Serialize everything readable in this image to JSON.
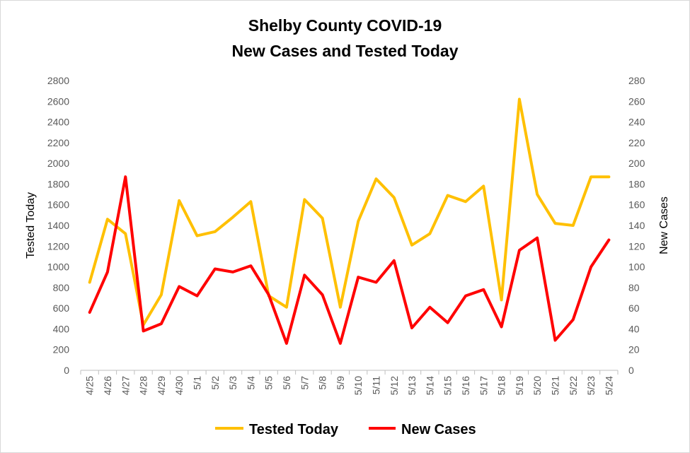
{
  "chart_data": {
    "type": "line",
    "title": "Shelby County COVID-19",
    "subtitle": "New Cases and Tested Today",
    "ylabel_left": "Tested Today",
    "ylabel_right": "New Cases",
    "ylim_left": [
      0,
      2800
    ],
    "ylim_right": [
      0,
      280
    ],
    "yticks_left": [
      0,
      200,
      400,
      600,
      800,
      1000,
      1200,
      1400,
      1600,
      1800,
      2000,
      2200,
      2400,
      2600,
      2800
    ],
    "yticks_right": [
      0,
      20,
      40,
      60,
      80,
      100,
      120,
      140,
      160,
      180,
      200,
      220,
      240,
      260,
      280
    ],
    "grid": false,
    "legend_position": "bottom",
    "categories": [
      "4/25",
      "4/26",
      "4/27",
      "4/28",
      "4/29",
      "4/30",
      "5/1",
      "5/2",
      "5/3",
      "5/4",
      "5/5",
      "5/6",
      "5/7",
      "5/8",
      "5/9",
      "5/10",
      "5/11",
      "5/12",
      "5/13",
      "5/14",
      "5/15",
      "5/16",
      "5/17",
      "5/18",
      "5/19",
      "5/20",
      "5/21",
      "5/22",
      "5/23",
      "5/24"
    ],
    "series": [
      {
        "name": "Tested Today",
        "axis": "left",
        "color": "#FFC000",
        "values": [
          850,
          1460,
          1320,
          440,
          730,
          1640,
          1300,
          1340,
          1480,
          1630,
          720,
          610,
          1650,
          1470,
          610,
          1440,
          1850,
          1670,
          1210,
          1320,
          1690,
          1630,
          1780,
          680,
          2620,
          1700,
          1420,
          1400,
          1870,
          1870
        ]
      },
      {
        "name": "New Cases",
        "axis": "right",
        "color": "#FF0000",
        "values": [
          56,
          95,
          187,
          38,
          45,
          81,
          72,
          98,
          95,
          101,
          73,
          26,
          92,
          73,
          26,
          90,
          85,
          106,
          41,
          61,
          46,
          72,
          78,
          42,
          116,
          128,
          29,
          49,
          100,
          126
        ]
      }
    ]
  }
}
